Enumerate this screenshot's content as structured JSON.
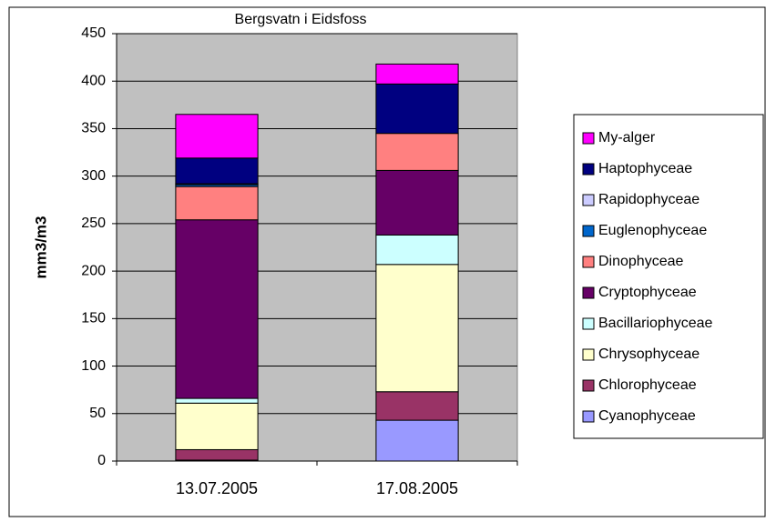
{
  "chart_data": {
    "type": "stacked-bar",
    "title": "Bergsvatn i Eidsfoss",
    "y_label": "mm3/m3",
    "categories": [
      "13.07.2005",
      "17.08.2005"
    ],
    "series": [
      {
        "name": "Cyanophyceae",
        "color": "#9999ff",
        "values": [
          1,
          43
        ]
      },
      {
        "name": "Chlorophyceae",
        "color": "#993366",
        "values": [
          11,
          30
        ]
      },
      {
        "name": "Chrysophyceae",
        "color": "#ffffcc",
        "values": [
          49,
          134
        ]
      },
      {
        "name": "Bacillariophyceae",
        "color": "#ccffff",
        "values": [
          5,
          31
        ]
      },
      {
        "name": "Cryptophyceae",
        "color": "#660066",
        "values": [
          188,
          68
        ]
      },
      {
        "name": "Dinophyceae",
        "color": "#ff8080",
        "values": [
          35,
          39
        ]
      },
      {
        "name": "Euglenophyceae",
        "color": "#0066cc",
        "values": [
          2,
          0
        ]
      },
      {
        "name": "Rapidophyceae",
        "color": "#ccccff",
        "values": [
          1,
          0
        ]
      },
      {
        "name": "Haptophyceae",
        "color": "#000080",
        "values": [
          27,
          52
        ]
      },
      {
        "name": "My-alger",
        "color": "#ff00ff",
        "values": [
          46,
          21
        ]
      }
    ],
    "ylim": [
      0,
      450
    ],
    "yticks": [
      0,
      50,
      100,
      150,
      200,
      250,
      300,
      350,
      400,
      450
    ],
    "grid": true,
    "plot_background": "#c0c0c0",
    "legend": "right"
  }
}
